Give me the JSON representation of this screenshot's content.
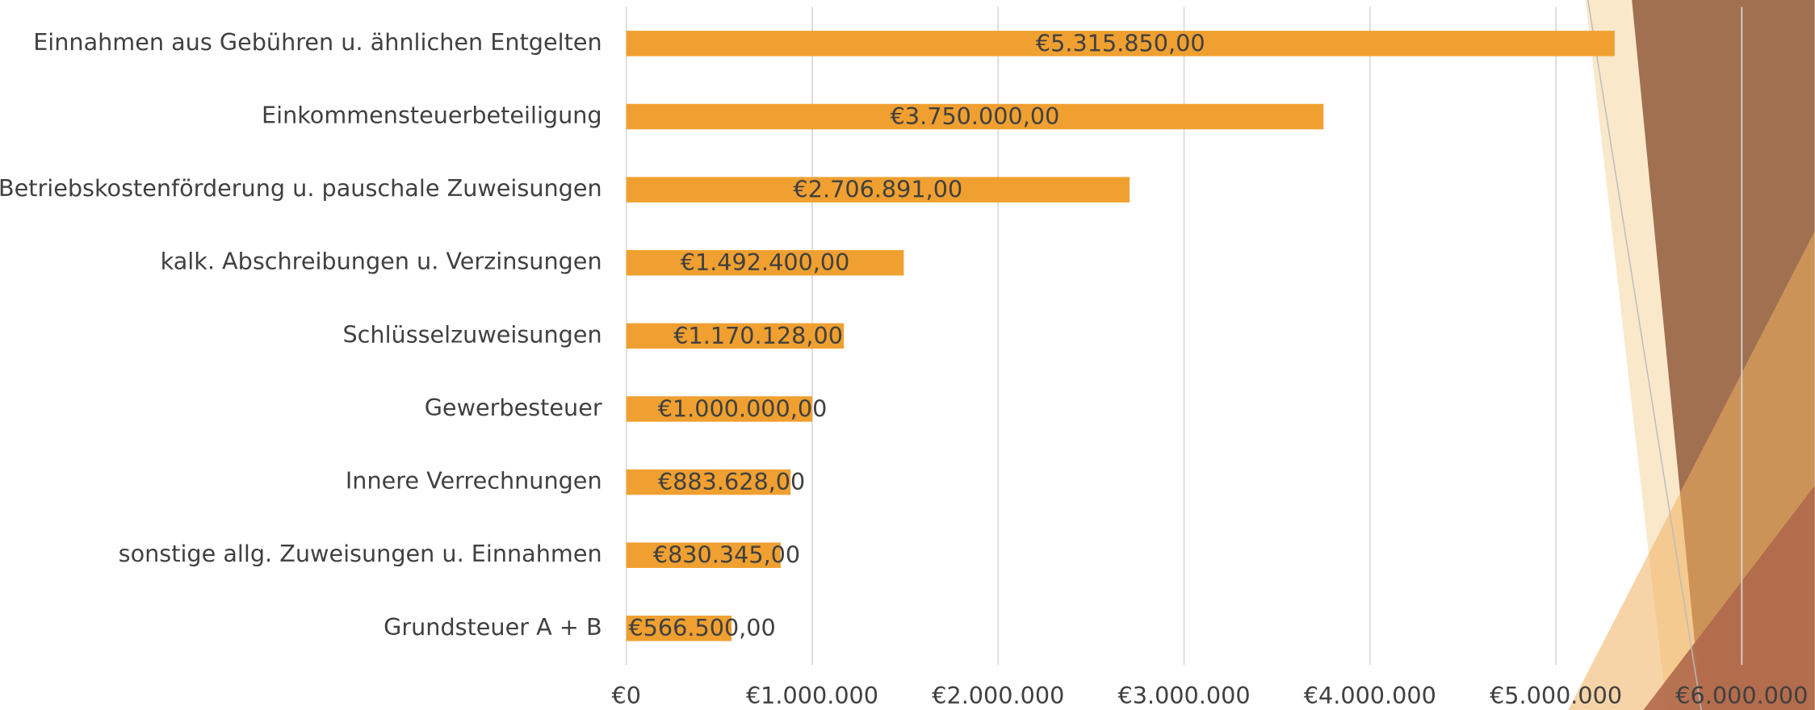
{
  "chart_data": {
    "type": "hbar",
    "categories": [
      "Einnahmen aus Gebühren u. ähnlichen Entgelten",
      "Einkommensteuerbeteiligung",
      "Betriebskostenförderung u. pauschale Zuweisungen",
      "kalk. Abschreibungen u. Verzinsungen",
      "Schlüsselzuweisungen",
      "Gewerbesteuer",
      "Innere Verrechnungen",
      "sonstige allg. Zuweisungen u. Einnahmen",
      "Grundsteuer A + B"
    ],
    "values": [
      5315850,
      3750000,
      2706891,
      1492400,
      1170128,
      1000000,
      883628,
      830345,
      566500
    ],
    "value_labels": [
      "€5.315.850,00",
      "€3.750.000,00",
      "€2.706.891,00",
      "€1.492.400,00",
      "€1.170.128,00",
      "€1.000.000,00",
      "€883.628,00",
      "€830.345,00",
      "€566.500,00"
    ],
    "color": "#f0a030",
    "xlim": [
      0,
      6000000
    ],
    "xticks": [
      {
        "value": 0,
        "label": "€0"
      },
      {
        "value": 1000000,
        "label": "€1.000.000"
      },
      {
        "value": 2000000,
        "label": "€2.000.000"
      },
      {
        "value": 3000000,
        "label": "€3.000.000"
      },
      {
        "value": 4000000,
        "label": "€4.000.000"
      },
      {
        "value": 5000000,
        "label": "€5.000.000"
      },
      {
        "value": 6000000,
        "label": "€6.000.000"
      }
    ],
    "grid": true
  }
}
